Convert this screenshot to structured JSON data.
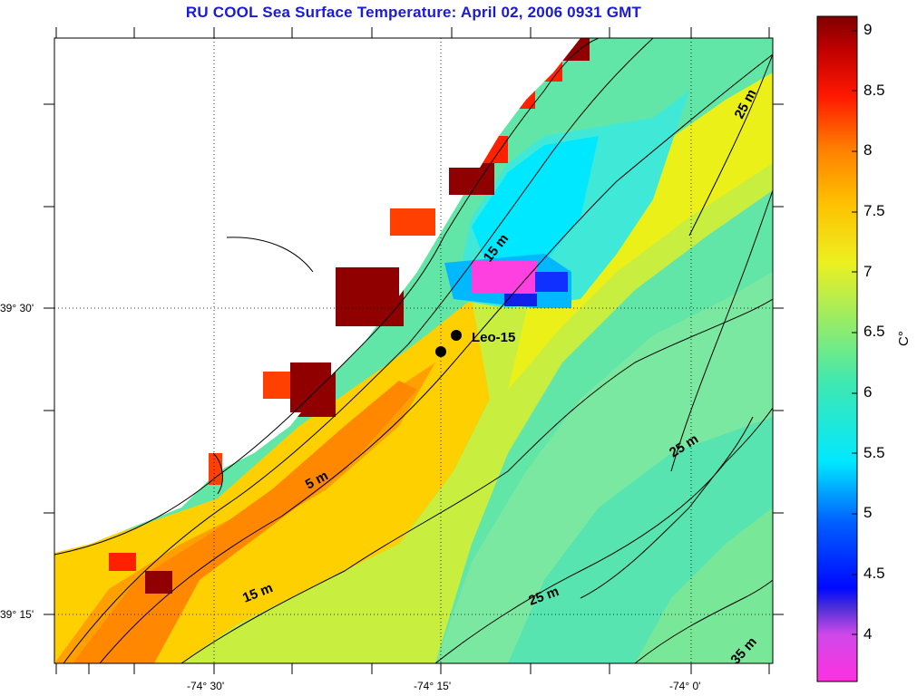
{
  "title": "RU COOL  Sea Surface Temperature:  April 02, 2006 0931 GMT",
  "station_label": "Leo-15",
  "lat_labels": [
    "39° 30'",
    "39° 15'"
  ],
  "lon_labels": [
    "-74° 30'",
    "-74° 15'",
    "-74° 0'"
  ],
  "depth_labels": [
    "15 m",
    "5 m",
    "15 m",
    "25 m",
    "25 m",
    "25 m",
    "35 m"
  ],
  "colorbar": {
    "unit": "C°",
    "ticks": [
      "9",
      "8.5",
      "8",
      "7.5",
      "7",
      "6.5",
      "6",
      "5.5",
      "5",
      "4.5",
      "4"
    ],
    "range": [
      3.6,
      9.1
    ],
    "colors": [
      "#ff30e0",
      "#7a38d8",
      "#0010ff",
      "#00a0ff",
      "#00f0ff",
      "#40e8a0",
      "#a0ec60",
      "#f0f000",
      "#ffc000",
      "#ff7000",
      "#ff2000",
      "#a00000",
      "#800000"
    ]
  }
}
